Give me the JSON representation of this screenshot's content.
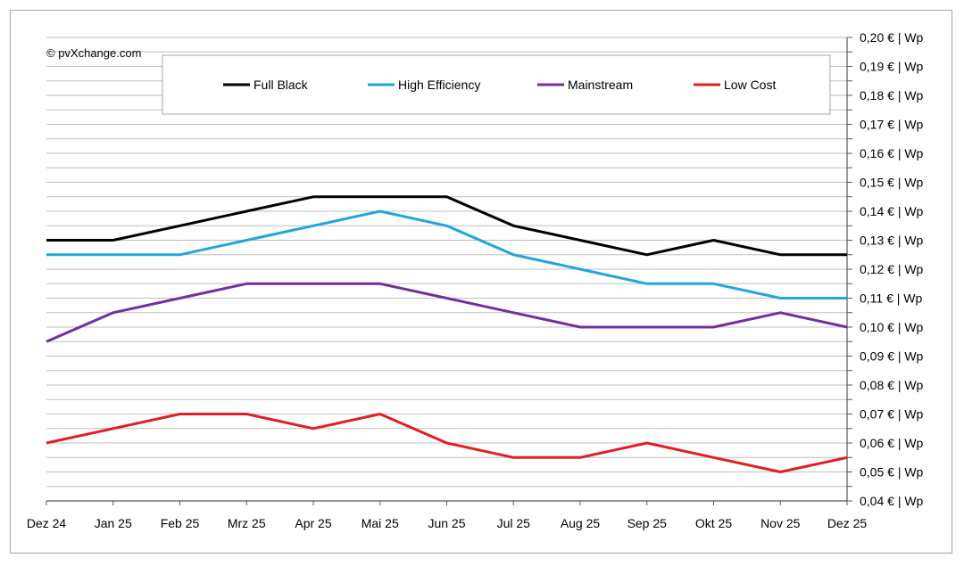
{
  "copyright": "© pvXchange.com",
  "chart_data": {
    "type": "line",
    "categories": [
      "Dez 24",
      "Jan 25",
      "Feb 25",
      "Mrz 25",
      "Apr 25",
      "Mai 25",
      "Jun 25",
      "Jul 25",
      "Aug 25",
      "Sep 25",
      "Okt 25",
      "Nov 25",
      "Dez 25"
    ],
    "series": [
      {
        "name": "Full Black",
        "color": "#000000",
        "values": [
          0.13,
          0.13,
          0.135,
          0.14,
          0.145,
          0.145,
          0.145,
          0.135,
          0.13,
          0.125,
          0.13,
          0.125,
          0.125
        ]
      },
      {
        "name": "High Efficiency",
        "color": "#1fa6dc",
        "values": [
          0.125,
          0.125,
          0.125,
          0.13,
          0.135,
          0.14,
          0.135,
          0.125,
          0.12,
          0.115,
          0.115,
          0.11,
          0.11
        ]
      },
      {
        "name": "Mainstream",
        "color": "#7030a0",
        "values": [
          0.095,
          0.105,
          0.11,
          0.115,
          0.115,
          0.115,
          0.11,
          0.105,
          0.1,
          0.1,
          0.1,
          0.105,
          0.1
        ]
      },
      {
        "name": "Low Cost",
        "color": "#e02020",
        "values": [
          0.06,
          0.065,
          0.07,
          0.07,
          0.065,
          0.07,
          0.06,
          0.055,
          0.055,
          0.06,
          0.055,
          0.05,
          0.055
        ]
      }
    ],
    "ylim": [
      0.04,
      0.2
    ],
    "y_ticks": [
      "0,04 € | Wp",
      "0,05 € | Wp",
      "0,06 € | Wp",
      "0,07 € | Wp",
      "0,08 € | Wp",
      "0,09 € | Wp",
      "0,10 € | Wp",
      "0,11 € | Wp",
      "0,12 € | Wp",
      "0,13 € | Wp",
      "0,14 € | Wp",
      "0,15 € | Wp",
      "0,16 € | Wp",
      "0,17 € | Wp",
      "0,18 € | Wp",
      "0,19 € | Wp",
      "0,20 € | Wp"
    ],
    "y_axis_side": "right",
    "grid": true,
    "legend_position": "top"
  }
}
